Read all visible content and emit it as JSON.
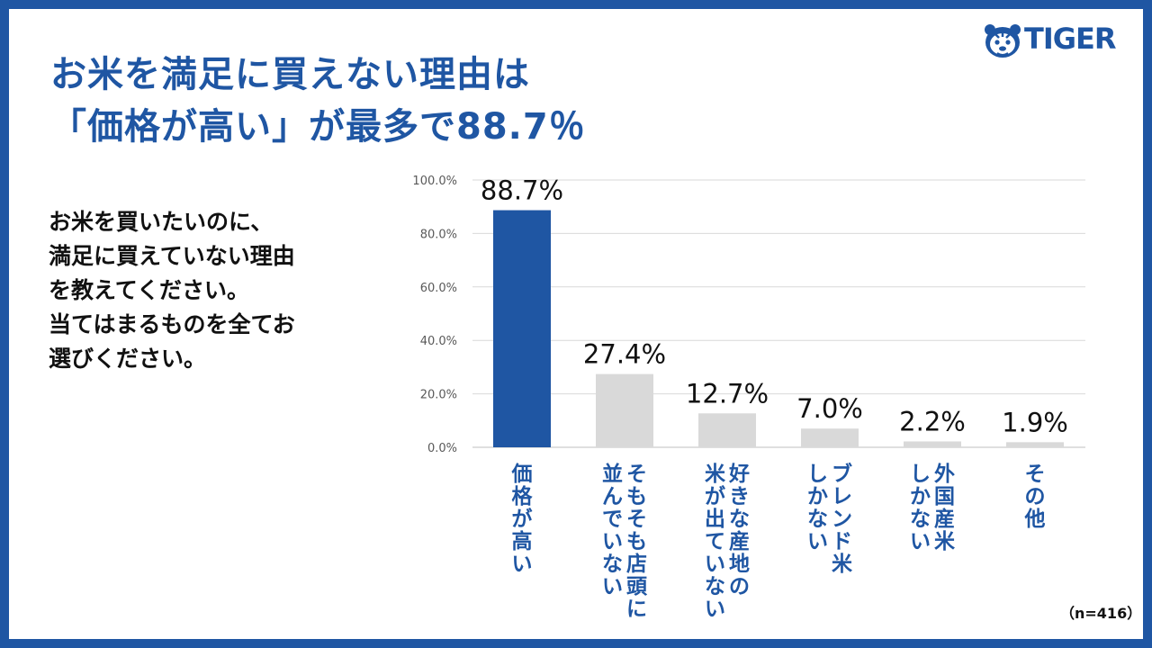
{
  "title": {
    "line1": "お米を満足に買えない理由は",
    "line2": "「価格が高い」が最多で88.7％"
  },
  "logo": {
    "text": "TIGER",
    "icon": "tiger-head-icon"
  },
  "question": {
    "lines": [
      "お米を買いたいのに、",
      "満足に買えていない理由",
      "を教えてください。",
      "当てはまるものを全てお",
      "選びください。"
    ]
  },
  "note": "（n=416）",
  "colors": {
    "primary": "#1f56a3",
    "highlight_bar": "#1f56a3",
    "other_bar": "#d9d9d9"
  },
  "chart_data": {
    "type": "bar",
    "categories": [
      [
        "価格が高い"
      ],
      [
        "そもそも店頭に",
        "並んでいない"
      ],
      [
        "好きな産地の",
        "米が出ていない"
      ],
      [
        "ブレンド米",
        "しかない"
      ],
      [
        "外国産米",
        "しかない"
      ],
      [
        "その他"
      ]
    ],
    "values": [
      88.7,
      27.4,
      12.7,
      7.0,
      2.2,
      1.9
    ],
    "value_labels": [
      "88.7%",
      "27.4%",
      "12.7%",
      "7.0%",
      "2.2%",
      "1.9%"
    ],
    "yticks": [
      "0.0%",
      "20.0%",
      "40.0%",
      "60.0%",
      "80.0%",
      "100.0%"
    ],
    "ylim": [
      0,
      100
    ],
    "grid": true,
    "highlight_index": 0
  }
}
